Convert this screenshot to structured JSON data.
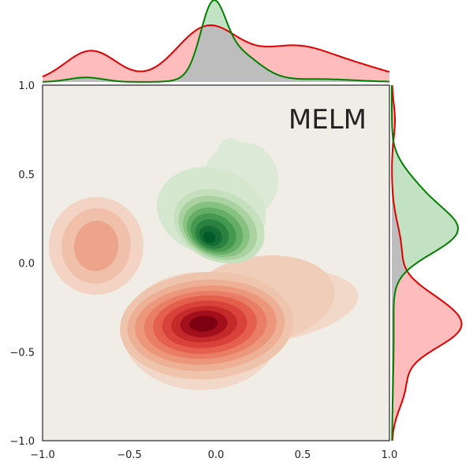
{
  "chart_data": {
    "type": "joint-kde",
    "title": "MELM",
    "xlabel": "",
    "ylabel": "",
    "xlim": [
      -1.0,
      1.0
    ],
    "ylim": [
      -1.0,
      1.0
    ],
    "x_ticks": [
      "−1.0",
      "−0.5",
      "0.0",
      "0.5",
      "1.0"
    ],
    "y_ticks": [
      "−1.0",
      "−0.5",
      "0.0",
      "0.5",
      "1.0"
    ],
    "x_tick_values": [
      -1.0,
      -0.5,
      0.0,
      0.5,
      1.0
    ],
    "y_tick_values": [
      -1.0,
      -0.5,
      0.0,
      0.5,
      1.0
    ],
    "grid": false,
    "colors": {
      "background": "#f0ece6",
      "red_line": "#e00000",
      "red_fill": "#ffbcbc",
      "green_line": "#008000",
      "green_fill": "#c3e2c3",
      "overlap_fill": "#bdbdbd"
    },
    "series": [
      {
        "color": "red",
        "modes": [
          {
            "x": -0.05,
            "y": -0.37,
            "weight": 0.62
          },
          {
            "x": 0.3,
            "y": -0.25,
            "weight": 0.18
          },
          {
            "x": -0.7,
            "y": 0.07,
            "weight": 0.2
          }
        ]
      },
      {
        "color": "green",
        "modes": [
          {
            "x": -0.02,
            "y": 0.15,
            "weight": 0.85
          },
          {
            "x": 0.05,
            "y": 0.45,
            "weight": 0.15
          }
        ]
      }
    ]
  }
}
